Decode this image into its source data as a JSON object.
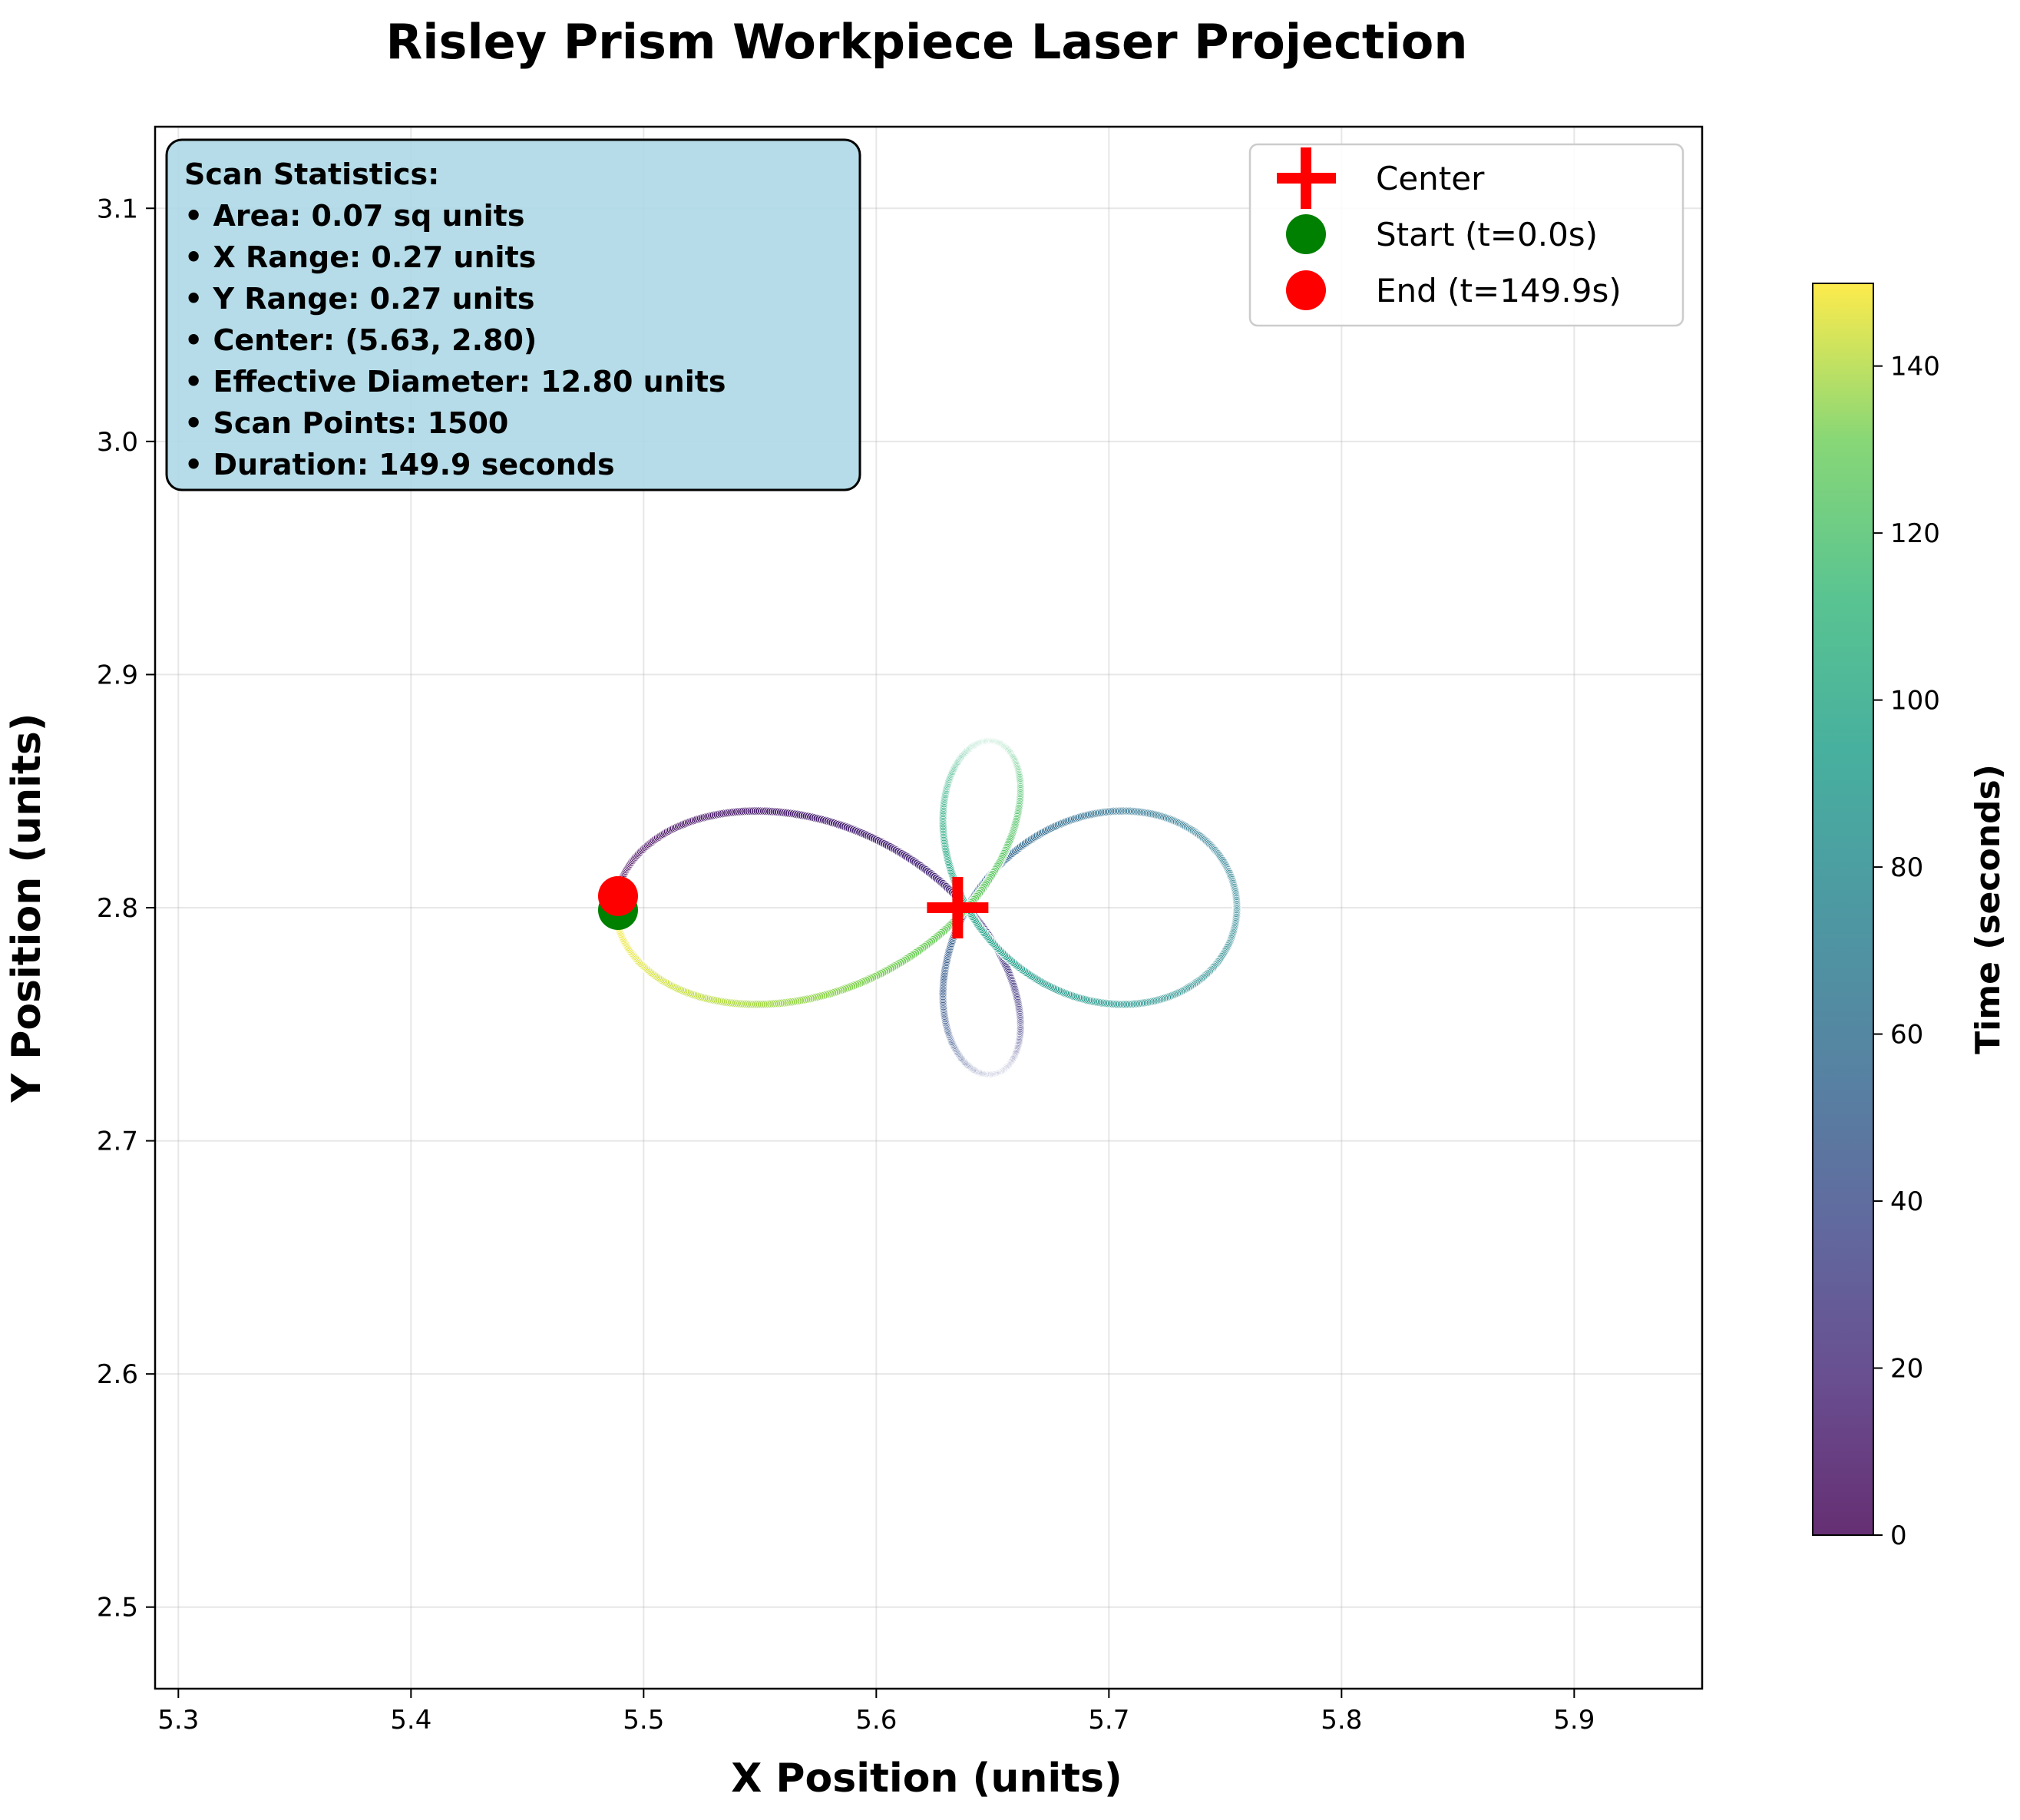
{
  "chart_data": {
    "type": "scatter",
    "title": "Risley Prism Workpiece Laser Projection",
    "xlabel": "X Position (units)",
    "ylabel": "Y Position (units)",
    "xlim": [
      5.29,
      5.955
    ],
    "ylim": [
      2.465,
      3.135
    ],
    "x_ticks": [
      5.3,
      5.4,
      5.5,
      5.6,
      5.7,
      5.8,
      5.9
    ],
    "y_ticks": [
      2.5,
      2.6,
      2.7,
      2.8,
      2.9,
      3.0,
      3.1
    ],
    "x_tick_labels": [
      "5.3",
      "5.4",
      "5.5",
      "5.6",
      "5.7",
      "5.8",
      "5.9"
    ],
    "y_tick_labels": [
      "2.5",
      "2.6",
      "2.7",
      "2.8",
      "2.9",
      "3.0",
      "3.1"
    ],
    "grid": true,
    "legend_position": "top-right",
    "scan_path": {
      "point_count": 1500,
      "colormap": "viridis",
      "time_start": 0.0,
      "time_end": 149.9,
      "center": [
        5.635,
        2.8
      ],
      "outer_circle": {
        "center": [
          5.6215,
          2.8
        ],
        "radius": 0.1335
      },
      "inner_circle": {
        "center": [
          5.6485,
          2.8
        ],
        "radius": 0.0715
      },
      "loop_count": 2,
      "connect_line_color": "#2f4f2f"
    },
    "markers": {
      "center": {
        "label": "Center",
        "x": 5.635,
        "y": 2.8,
        "color": "#ff0000",
        "symbol": "plus"
      },
      "start": {
        "label": "Start (t=0.0s)",
        "x": 5.489,
        "y": 2.799,
        "color": "#008000",
        "symbol": "circle"
      },
      "end": {
        "label": "End (t=149.9s)",
        "x": 5.489,
        "y": 2.805,
        "color": "#ff0000",
        "symbol": "circle"
      }
    },
    "colorbar": {
      "label": "Time (seconds)",
      "min": 0,
      "max": 149.9,
      "ticks": [
        0,
        20,
        40,
        60,
        80,
        100,
        120,
        140
      ],
      "tick_labels": [
        "0",
        "20",
        "40",
        "60",
        "80",
        "100",
        "120",
        "140"
      ]
    },
    "annotation": {
      "background": "#add8e6",
      "lines": [
        "Scan Statistics:",
        "• Area: 0.07 sq units",
        "• X Range: 0.27 units",
        "• Y Range: 0.27 units",
        "• Center: (5.63, 2.80)",
        "• Effective Diameter: 12.80 units",
        "• Scan Points: 1500",
        "• Duration: 149.9 seconds"
      ]
    }
  }
}
